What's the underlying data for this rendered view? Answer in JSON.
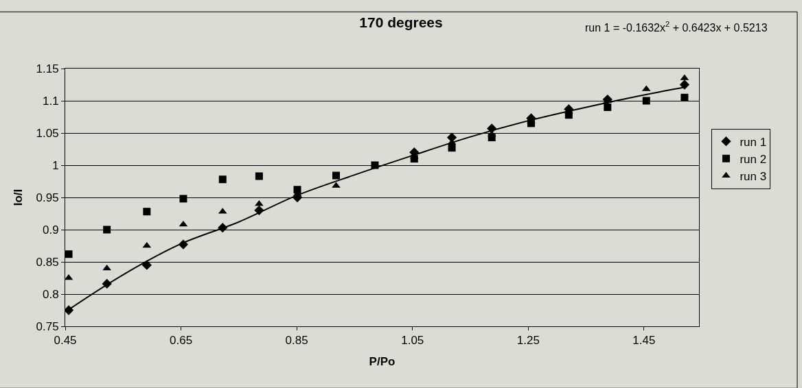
{
  "chart_data": {
    "type": "scatter",
    "title": "170 degrees",
    "xlabel": "P/Po",
    "ylabel": "Io/I",
    "x": [
      0.456,
      0.522,
      0.591,
      0.654,
      0.722,
      0.785,
      0.851,
      0.918,
      0.985,
      1.053,
      1.118,
      1.187,
      1.255,
      1.32,
      1.387,
      1.454,
      1.52
    ],
    "series": [
      {
        "name": "run 1",
        "color": "#000000",
        "marker": "diamond",
        "values": [
          0.775,
          0.816,
          0.845,
          0.877,
          0.903,
          0.93,
          0.95,
          null,
          null,
          1.02,
          1.043,
          1.057,
          1.073,
          1.087,
          1.102,
          null,
          1.125
        ]
      },
      {
        "name": "run 2",
        "color": "#000000",
        "marker": "square",
        "values": [
          0.862,
          0.9,
          0.928,
          0.948,
          0.978,
          0.983,
          0.962,
          0.984,
          1.0,
          1.01,
          1.027,
          1.043,
          1.065,
          1.078,
          1.09,
          1.1,
          1.105
        ]
      },
      {
        "name": "run 3",
        "color": "#000000",
        "marker": "triangle",
        "values": [
          0.825,
          0.84,
          0.875,
          0.908,
          0.928,
          0.94,
          0.955,
          0.968,
          null,
          1.013,
          1.035,
          1.048,
          1.068,
          1.083,
          1.1,
          1.118,
          1.135
        ]
      },
      {
        "type": "line",
        "color": "#000000",
        "line_style": "solid",
        "x": [
          0.456,
          0.55,
          0.65,
          0.75,
          0.85,
          0.95,
          1.05,
          1.15,
          1.25,
          1.35,
          1.45,
          1.52
        ],
        "values": [
          0.776,
          0.83,
          0.878,
          0.912,
          0.953,
          0.985,
          1.015,
          1.044,
          1.069,
          1.09,
          1.109,
          1.121
        ]
      }
    ],
    "annotations": [
      "run 1 = -0.1632x$^{2}$ + 0.6423x + 0.5213"
    ],
    "xlim": [
      0.45,
      1.545
    ],
    "xticks": [
      0.45,
      0.65,
      0.85,
      1.05,
      1.25,
      1.45
    ],
    "ylim": [
      0.75,
      1.15
    ],
    "yticks": [
      0.75,
      0.8,
      0.85,
      0.9,
      0.95,
      1,
      1.05,
      1.1,
      1.15
    ],
    "grid": "y",
    "legend": "right"
  }
}
